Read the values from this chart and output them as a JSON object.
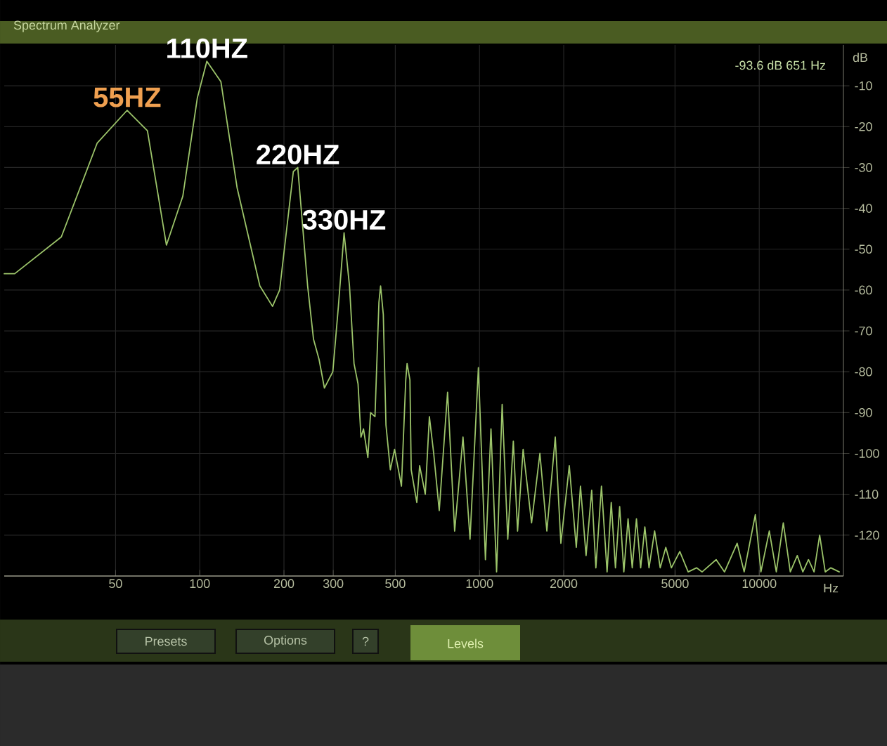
{
  "chart_data": {
    "type": "line",
    "title": "Spectrum Analyzer",
    "xlabel": "Hz",
    "ylabel": "dB",
    "color": "#9cc46a",
    "grid": true,
    "log": "x",
    "xlim": [
      20,
      20000
    ],
    "ylim": [
      -130,
      0
    ],
    "xticks": [
      50,
      100,
      200,
      300,
      500,
      1000,
      2000,
      5000,
      10000
    ],
    "yticks": [
      -10,
      -20,
      -30,
      -40,
      -50,
      -60,
      -70,
      -80,
      -90,
      -100,
      -110,
      -120
    ],
    "x": [
      20,
      21.8,
      32,
      43,
      55,
      65,
      76,
      87,
      98,
      106,
      119,
      136,
      164,
      182,
      193,
      216,
      224,
      243,
      255,
      267,
      279,
      299,
      313,
      328,
      343,
      356,
      368,
      377,
      385,
      399,
      408,
      423,
      437,
      443,
      453,
      463,
      480,
      497,
      526,
      545,
      551,
      564,
      570,
      597,
      611,
      640,
      662,
      686,
      718,
      769,
      815,
      873,
      925,
      991,
      1050,
      1099,
      1151,
      1205,
      1262,
      1321,
      1368,
      1432,
      1535,
      1644,
      1741,
      1866,
      1954,
      2094,
      2218,
      2296,
      2404,
      2518,
      2606,
      2729,
      2858,
      2958,
      3062,
      3170,
      3281,
      3397,
      3516,
      3640,
      3768,
      3900,
      4036,
      4227,
      4426,
      4634,
      4852,
      5200,
      5572,
      5970,
      6250,
      7015,
      7516,
      8337,
      8832,
      9683,
      10139,
      10864,
      11508,
      12190,
      12913,
      13677,
      14322,
      14997,
      15704,
      16444,
      17219,
      18030,
      19320
    ],
    "values": [
      -56,
      -56,
      -47,
      -24,
      -16,
      -21,
      -49,
      -37,
      -13,
      -4,
      -9,
      -35,
      -59,
      -64,
      -60,
      -31,
      -30,
      -59,
      -72,
      -77,
      -84,
      -80,
      -64,
      -46,
      -59,
      -78,
      -83,
      -96,
      -94,
      -101,
      -90,
      -91,
      -63,
      -59,
      -66,
      -93,
      -104,
      -99,
      -108,
      -82,
      -78,
      -82,
      -104,
      -112,
      -103,
      -110,
      -91,
      -100,
      -114,
      -85,
      -119,
      -96,
      -121,
      -79,
      -126,
      -94,
      -129,
      -88,
      -121,
      -97,
      -119,
      -99,
      -117,
      -100,
      -119,
      -96,
      -122,
      -103,
      -123,
      -108,
      -125,
      -109,
      -128,
      -108,
      -129,
      -112,
      -128,
      -113,
      -129,
      -116,
      -128,
      -116,
      -128,
      -118,
      -128,
      -119,
      -128,
      -123,
      -128,
      -124,
      -129,
      -128,
      -129,
      -126,
      -129,
      -122,
      -129,
      -115,
      -129,
      -119,
      -129,
      -117,
      -129,
      -125,
      -129,
      -126,
      -129,
      -120,
      -129,
      -128,
      -129
    ],
    "annotations": [
      "-93.6 dB 651 Hz",
      "Presets",
      "Options",
      "?",
      "Levels",
      {
        "text": "55HZ",
        "x": 55,
        "y": -16
      },
      {
        "text": "110HZ",
        "x": 106,
        "y": -4
      },
      {
        "text": "220HZ",
        "x": 224,
        "y": -30
      },
      {
        "text": "330HZ",
        "x": 328,
        "y": -46
      }
    ]
  }
}
